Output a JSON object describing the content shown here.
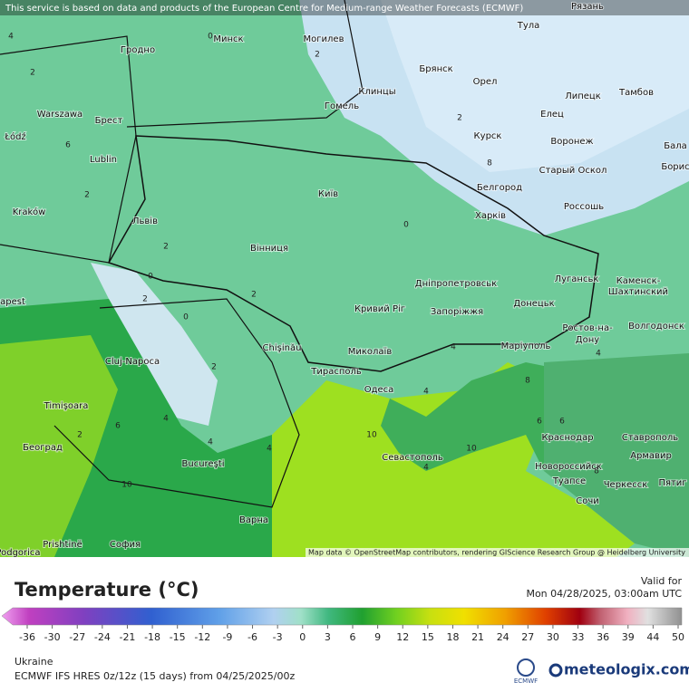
{
  "attribution": "This service is based on data and products of the European Centre for Medium-range Weather Forecasts (ECMWF)",
  "map_credit": "Map data © OpenStreetMap contributors, rendering GIScience Research Group @ Heidelberg University",
  "cities": [
    "Рязань",
    "Тула",
    "Минск",
    "Могилев",
    "Гродно",
    "Брянск",
    "Клинцы",
    "Орел",
    "Гомель",
    "Липецк",
    "Тамбов",
    "Warszawa",
    "Брест",
    "Елец",
    "Łódź",
    "Lublin",
    "Курск",
    "Воронеж",
    "Бала",
    "Борис",
    "Старый Оскол",
    "Белгород",
    "Київ",
    "Россошь",
    "Kraków",
    "Львів",
    "Харків",
    "Вінниця",
    "Луганськ",
    "Дніпропетровськ",
    "Каменск-",
    "Шахтинский",
    "Кривий Ріг",
    "Запоріжжя",
    "Донецьк",
    "Ростов-на-",
    "Дону",
    "Волгодонск",
    "apest",
    "Chişinău",
    "Миколаїв",
    "Маріуполь",
    "Cluj-Napoca",
    "Тирасполь",
    "Одеса",
    "Timişoara",
    "Краснодар",
    "Ставрополь",
    "Београд",
    "Bucureşti",
    "Севастополь",
    "Армавир",
    "Новороссийск",
    "Туапсе",
    "Черкесск",
    "Пятиг",
    "Сочи",
    "Варна",
    "Prishtinë",
    "София",
    "Podgorica"
  ],
  "contour_labels": [
    2,
    0,
    2,
    2,
    2,
    0,
    2,
    2,
    0,
    2,
    4,
    2,
    0,
    2,
    4,
    4,
    6,
    8,
    4,
    6,
    10,
    10,
    4,
    6,
    10,
    4,
    8,
    6,
    4,
    4,
    8
  ],
  "legend": {
    "title": "Temperature (°C)",
    "ticks": [
      -36,
      -30,
      -27,
      -24,
      -21,
      -18,
      -15,
      -12,
      -9,
      -6,
      -3,
      0,
      3,
      6,
      9,
      12,
      15,
      18,
      21,
      24,
      27,
      30,
      33,
      36,
      39,
      44,
      50
    ]
  },
  "valid_label": "Valid for",
  "valid_time": "Mon 04/28/2025, 03:00am UTC",
  "region": "Ukraine",
  "model": "ECMWF IFS HRES 0z/12z (15 days) from 04/25/2025/00z",
  "logo_ecmwf": "ECMWF",
  "logo_meteologix": "meteologix.com"
}
